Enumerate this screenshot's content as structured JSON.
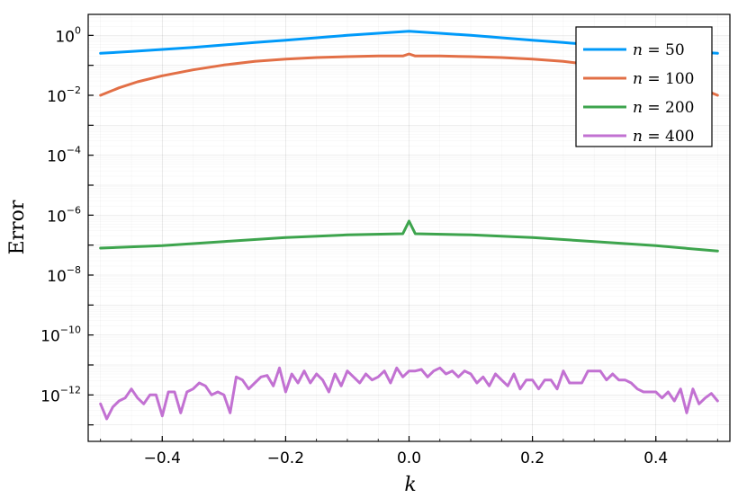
{
  "chart_data": {
    "type": "line",
    "xlabel": "k",
    "ylabel": "Error",
    "xlim": [
      -0.52,
      0.52
    ],
    "ylim_log10": [
      -13.55,
      0.7
    ],
    "y_scale": "log",
    "grid": true,
    "legend_position": "top-right",
    "x_ticks": [
      -0.4,
      -0.2,
      0.0,
      0.2,
      0.4
    ],
    "x_tick_labels": [
      "−0.4",
      "−0.2",
      "0.0",
      "0.2",
      "0.4"
    ],
    "y_ticks": [
      {
        "base": "10",
        "exp": "0",
        "log10": 0
      },
      {
        "base": "10",
        "exp": "−2",
        "log10": -2
      },
      {
        "base": "10",
        "exp": "−4",
        "log10": -4
      },
      {
        "base": "10",
        "exp": "−6",
        "log10": -6
      },
      {
        "base": "10",
        "exp": "−8",
        "log10": -8
      },
      {
        "base": "10",
        "exp": "−10",
        "log10": -10
      },
      {
        "base": "10",
        "exp": "−12",
        "log10": -12
      }
    ],
    "series": [
      {
        "name_var": "n",
        "name_eq": " = ",
        "name_val": "50",
        "color": "#009af9",
        "x": [
          -0.5,
          -0.45,
          -0.4,
          -0.35,
          -0.3,
          -0.25,
          -0.2,
          -0.15,
          -0.1,
          -0.05,
          0.0,
          0.05,
          0.1,
          0.15,
          0.2,
          0.25,
          0.3,
          0.35,
          0.4,
          0.45,
          0.5
        ],
        "log10_y": [
          -0.6,
          -0.54,
          -0.47,
          -0.4,
          -0.32,
          -0.24,
          -0.16,
          -0.08,
          0.0,
          0.07,
          0.14,
          0.07,
          0.0,
          -0.08,
          -0.16,
          -0.24,
          -0.32,
          -0.4,
          -0.47,
          -0.54,
          -0.6
        ]
      },
      {
        "name_var": "n",
        "name_eq": " = ",
        "name_val": "100",
        "color": "#e26f46",
        "x": [
          -0.5,
          -0.47,
          -0.44,
          -0.4,
          -0.35,
          -0.3,
          -0.25,
          -0.2,
          -0.15,
          -0.1,
          -0.05,
          -0.01,
          0.0,
          0.01,
          0.05,
          0.1,
          0.15,
          0.2,
          0.25,
          0.3,
          0.35,
          0.4,
          0.44,
          0.47,
          0.5
        ],
        "log10_y": [
          -2.0,
          -1.75,
          -1.55,
          -1.35,
          -1.15,
          -0.99,
          -0.87,
          -0.79,
          -0.74,
          -0.71,
          -0.69,
          -0.69,
          -0.62,
          -0.69,
          -0.69,
          -0.71,
          -0.74,
          -0.79,
          -0.87,
          -0.99,
          -1.15,
          -1.35,
          -1.55,
          -1.75,
          -2.0
        ]
      },
      {
        "name_var": "n",
        "name_eq": " = ",
        "name_val": "200",
        "color": "#3da44d",
        "x": [
          -0.5,
          -0.4,
          -0.3,
          -0.2,
          -0.1,
          -0.01,
          0.0,
          0.01,
          0.1,
          0.2,
          0.3,
          0.4,
          0.5
        ],
        "log10_y": [
          -7.1,
          -7.02,
          -6.88,
          -6.75,
          -6.66,
          -6.62,
          -6.2,
          -6.62,
          -6.66,
          -6.75,
          -6.88,
          -7.02,
          -7.2
        ]
      },
      {
        "name_var": "n",
        "name_eq": " = ",
        "name_val": "400",
        "color": "#c271d2",
        "x": [
          -0.5,
          -0.49,
          -0.48,
          -0.47,
          -0.46,
          -0.45,
          -0.44,
          -0.43,
          -0.42,
          -0.41,
          -0.4,
          -0.39,
          -0.38,
          -0.37,
          -0.36,
          -0.35,
          -0.34,
          -0.33,
          -0.32,
          -0.31,
          -0.3,
          -0.29,
          -0.28,
          -0.27,
          -0.26,
          -0.25,
          -0.24,
          -0.23,
          -0.22,
          -0.21,
          -0.2,
          -0.19,
          -0.18,
          -0.17,
          -0.16,
          -0.15,
          -0.14,
          -0.13,
          -0.12,
          -0.11,
          -0.1,
          -0.09,
          -0.08,
          -0.07,
          -0.06,
          -0.05,
          -0.04,
          -0.03,
          -0.02,
          -0.01,
          0.0,
          0.01,
          0.02,
          0.03,
          0.04,
          0.05,
          0.06,
          0.07,
          0.08,
          0.09,
          0.1,
          0.11,
          0.12,
          0.13,
          0.14,
          0.15,
          0.16,
          0.17,
          0.18,
          0.19,
          0.2,
          0.21,
          0.22,
          0.23,
          0.24,
          0.25,
          0.26,
          0.27,
          0.28,
          0.29,
          0.3,
          0.31,
          0.32,
          0.33,
          0.34,
          0.35,
          0.36,
          0.37,
          0.38,
          0.39,
          0.4,
          0.41,
          0.42,
          0.43,
          0.44,
          0.45,
          0.46,
          0.47,
          0.48,
          0.49,
          0.5
        ],
        "log10_y": [
          -12.3,
          -12.8,
          -12.4,
          -12.2,
          -12.1,
          -11.8,
          -12.1,
          -12.3,
          -12.0,
          -12.0,
          -12.7,
          -11.9,
          -11.9,
          -12.6,
          -11.9,
          -11.8,
          -11.6,
          -11.7,
          -12.0,
          -11.9,
          -12.0,
          -12.6,
          -11.4,
          -11.5,
          -11.8,
          -11.6,
          -11.4,
          -11.35,
          -11.7,
          -11.1,
          -11.9,
          -11.3,
          -11.6,
          -11.2,
          -11.6,
          -11.3,
          -11.5,
          -11.9,
          -11.3,
          -11.7,
          -11.2,
          -11.4,
          -11.6,
          -11.3,
          -11.5,
          -11.4,
          -11.2,
          -11.6,
          -11.1,
          -11.4,
          -11.2,
          -11.2,
          -11.15,
          -11.4,
          -11.2,
          -11.1,
          -11.3,
          -11.2,
          -11.4,
          -11.2,
          -11.3,
          -11.6,
          -11.4,
          -11.7,
          -11.3,
          -11.5,
          -11.7,
          -11.3,
          -11.8,
          -11.5,
          -11.5,
          -11.8,
          -11.5,
          -11.5,
          -11.8,
          -11.2,
          -11.6,
          -11.6,
          -11.6,
          -11.2,
          -11.2,
          -11.2,
          -11.5,
          -11.3,
          -11.5,
          -11.5,
          -11.6,
          -11.8,
          -11.9,
          -11.9,
          -11.9,
          -12.1,
          -11.9,
          -12.2,
          -11.8,
          -12.6,
          -11.8,
          -12.3,
          -12.1,
          -11.95,
          -12.2
        ]
      }
    ]
  }
}
